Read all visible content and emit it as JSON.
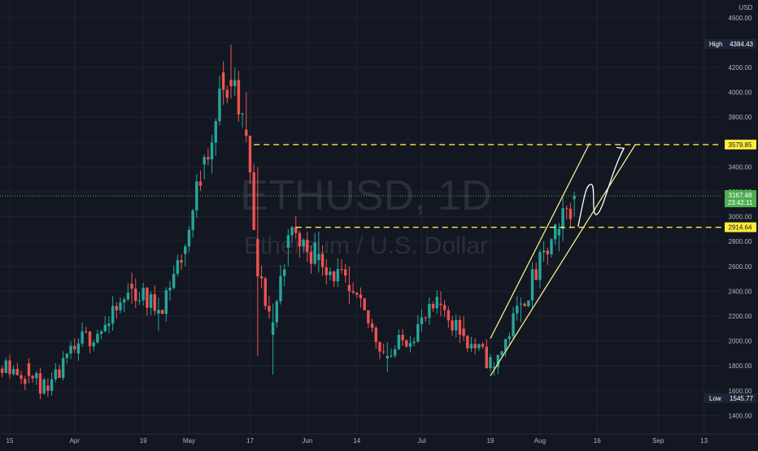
{
  "colors": {
    "background": "#131722",
    "grid": "#1e2330",
    "axis_text": "#b2b5be",
    "bull": "#26a69a",
    "bear": "#ef5350",
    "level_line": "#ffeb3b",
    "last_price_line": "#4caf50",
    "channel": "#f5e98a",
    "arrow": "#ffffff",
    "watermark": "#2a2e39",
    "tag_dark": "#1c2536"
  },
  "watermark": {
    "symbol": "ETHUSD, 1D",
    "description": "Ethereum / U.S. Dollar"
  },
  "chart_data": {
    "type": "candlestick",
    "symbol": "ETHUSD",
    "interval": "1D",
    "currency_label": "USD",
    "y_ticks": [
      1400,
      1600,
      1800,
      2000,
      2200,
      2400,
      2600,
      2800,
      3000,
      3200,
      3400,
      3600,
      3800,
      4000,
      4200,
      4400,
      4600
    ],
    "y_tick_labels": [
      "1400.00",
      "1600.00",
      "1800.00",
      "2000.00",
      "2200.00",
      "2400.00",
      "2600.00",
      "2800.00",
      "3000.00",
      "3200.00",
      "3400.00",
      "3600.00",
      "3800.00",
      "4000.00",
      "4200.00",
      "4400.00",
      "4600.00"
    ],
    "x_ticks": [
      {
        "date": "2021-03-15",
        "label": "15"
      },
      {
        "date": "2021-04-01",
        "label": "Apr"
      },
      {
        "date": "2021-04-19",
        "label": "19"
      },
      {
        "date": "2021-05-01",
        "label": "May"
      },
      {
        "date": "2021-05-17",
        "label": "17"
      },
      {
        "date": "2021-06-01",
        "label": "Jun"
      },
      {
        "date": "2021-06-14",
        "label": "14"
      },
      {
        "date": "2021-07-01",
        "label": "Jul"
      },
      {
        "date": "2021-07-19",
        "label": "19"
      },
      {
        "date": "2021-08-01",
        "label": "Aug"
      },
      {
        "date": "2021-08-16",
        "label": "16"
      },
      {
        "date": "2021-09-01",
        "label": "Sep"
      },
      {
        "date": "2021-09-13",
        "label": "13"
      }
    ],
    "ohlc_keypoints": [
      [
        "2021-03-08",
        1800,
        1940,
        1760,
        1860
      ],
      [
        "2021-03-20",
        1820,
        1860,
        1660,
        1720
      ],
      [
        "2021-03-25",
        1640,
        1700,
        1550,
        1600
      ],
      [
        "2021-04-02",
        1900,
        2020,
        1840,
        1980
      ],
      [
        "2021-04-10",
        2120,
        2200,
        2060,
        2140
      ],
      [
        "2021-04-16",
        2460,
        2550,
        2300,
        2420
      ],
      [
        "2021-04-23",
        2220,
        2350,
        2080,
        2250
      ],
      [
        "2021-04-30",
        2700,
        2780,
        2600,
        2760
      ],
      [
        "2021-05-05",
        3420,
        3500,
        3300,
        3480
      ],
      [
        "2021-05-10",
        4160,
        4250,
        3900,
        4020
      ],
      [
        "2021-05-12",
        4100,
        4384.43,
        3950,
        4050
      ],
      [
        "2021-05-16",
        3700,
        4000,
        3600,
        3650
      ],
      [
        "2021-05-19",
        2820,
        3400,
        1880,
        2520
      ],
      [
        "2021-05-23",
        2050,
        2300,
        1730,
        2150
      ],
      [
        "2021-05-27",
        2750,
        2900,
        2600,
        2850
      ],
      [
        "2021-06-04",
        2650,
        2880,
        2550,
        2700
      ],
      [
        "2021-06-12",
        2450,
        2600,
        2300,
        2400
      ],
      [
        "2021-06-22",
        1860,
        1990,
        1750,
        1880
      ],
      [
        "2021-07-06",
        2300,
        2400,
        2200,
        2290
      ],
      [
        "2021-07-12",
        2100,
        2200,
        2000,
        2040
      ],
      [
        "2021-07-20",
        1780,
        1830,
        1720,
        1790
      ],
      [
        "2021-07-27",
        2300,
        2350,
        2150,
        2300
      ],
      [
        "2021-08-06",
        2850,
        2950,
        2720,
        2900
      ],
      [
        "2021-08-10",
        3140,
        3200,
        3000,
        3167.48
      ]
    ],
    "high": {
      "label": "High",
      "value": "4384.43"
    },
    "low": {
      "label": "Low",
      "value": "1545.77"
    },
    "last_price": {
      "value": "3167.48",
      "countdown": "23:42:11"
    },
    "levels": [
      {
        "price": 3579.85,
        "label": "3579.85",
        "from_date": "2021-05-18"
      },
      {
        "price": 2914.64,
        "label": "2914.64",
        "from_date": "2021-05-29"
      }
    ],
    "drawings": {
      "channel_upper": [
        [
          "2021-07-19",
          2020
        ],
        [
          "2021-08-14",
          3590
        ]
      ],
      "channel_lower": [
        [
          "2021-07-19",
          1720
        ],
        [
          "2021-08-26",
          3580
        ]
      ],
      "projection_arrow": "zigzag up toward 3579.85"
    }
  }
}
